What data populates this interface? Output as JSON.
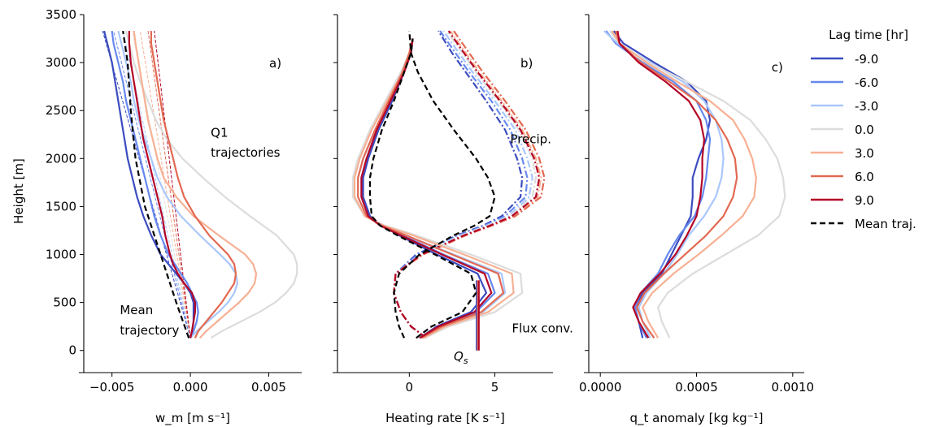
{
  "chart_data": [
    {
      "panel": "a)",
      "type": "line",
      "xlabel": "w_m [m s⁻¹]",
      "ylabel": "Height [m]",
      "xlim": [
        -0.0068,
        0.0071
      ],
      "ylim": [
        -180,
        3500
      ],
      "xticks": [
        {
          "v": -0.005,
          "t": "−0.005"
        },
        {
          "v": 0.0,
          "t": "0.000"
        },
        {
          "v": 0.005,
          "t": "0.005"
        }
      ],
      "yticks": [
        0,
        500,
        1000,
        1500,
        2000,
        2500,
        3000,
        3500
      ],
      "annotations": [
        {
          "text": "Q1",
          "x": 0.0013,
          "y": 2270
        },
        {
          "text": "trajectories",
          "x": 0.0013,
          "y": 2060
        },
        {
          "text": "Mean",
          "x": -0.0045,
          "y": 420
        },
        {
          "text": "trajectory",
          "x": -0.0045,
          "y": 210
        }
      ],
      "heights": [
        130,
        200,
        300,
        400,
        500,
        600,
        700,
        800,
        900,
        1000,
        1200,
        1400,
        1600,
        1800,
        2000,
        2200,
        2400,
        2600,
        2800,
        3000,
        3200,
        3330
      ],
      "series": [
        {
          "name": "-9.0",
          "values": [
            0.0,
            0.0001,
            0.0002,
            0.0002,
            0.0002,
            0.0,
            -0.0004,
            -0.0009,
            -0.0014,
            -0.0019,
            -0.0025,
            -0.003,
            -0.0034,
            -0.0037,
            -0.004,
            -0.0042,
            -0.0044,
            -0.0046,
            -0.0048,
            -0.005,
            -0.0053,
            -0.0055
          ]
        },
        {
          "name": "-6.0",
          "values": [
            0.0,
            0.0002,
            0.0004,
            0.0005,
            0.0004,
            0.0001,
            -0.0002,
            -0.0006,
            -0.001,
            -0.0014,
            -0.0019,
            -0.0023,
            -0.0026,
            -0.0029,
            -0.0032,
            -0.0035,
            -0.0038,
            -0.0041,
            -0.0043,
            -0.0046,
            -0.0049,
            -0.005
          ]
        },
        {
          "name": "-3.0",
          "values": [
            0.0,
            0.0004,
            0.0011,
            0.0018,
            0.0024,
            0.0028,
            0.003,
            0.0029,
            0.0025,
            0.0019,
            0.0006,
            -0.0006,
            -0.0015,
            -0.0021,
            -0.0025,
            -0.0029,
            -0.0033,
            -0.0036,
            -0.0038,
            -0.0041,
            -0.0044,
            -0.0046
          ]
        },
        {
          "name": "0.0",
          "values": [
            0.0013,
            0.002,
            0.0032,
            0.0044,
            0.0054,
            0.0061,
            0.0066,
            0.0068,
            0.0068,
            0.0066,
            0.0055,
            0.0038,
            0.0022,
            0.0008,
            -0.0005,
            -0.0015,
            -0.0022,
            -0.0027,
            -0.0032,
            -0.0036,
            -0.0039,
            -0.0041
          ]
        },
        {
          "name": "3.0",
          "values": [
            0.0006,
            0.001,
            0.0017,
            0.0024,
            0.0031,
            0.0037,
            0.0041,
            0.0042,
            0.004,
            0.0035,
            0.0018,
            0.0002,
            -0.0009,
            -0.0017,
            -0.0021,
            -0.0024,
            -0.0027,
            -0.0029,
            -0.0031,
            -0.0033,
            -0.0035,
            -0.0036
          ]
        },
        {
          "name": "6.0",
          "values": [
            0.0003,
            0.0005,
            0.001,
            0.0015,
            0.002,
            0.0024,
            0.0028,
            0.0029,
            0.0028,
            0.0024,
            0.0012,
            0.0003,
            -0.0004,
            -0.0008,
            -0.0011,
            -0.0014,
            -0.0017,
            -0.0019,
            -0.0021,
            -0.0023,
            -0.0025,
            -0.0025
          ]
        },
        {
          "name": "9.0",
          "values": [
            0.0,
            0.0001,
            0.0002,
            0.0003,
            0.0003,
            0.0001,
            -0.0004,
            -0.0008,
            -0.0011,
            -0.0013,
            -0.0016,
            -0.0018,
            -0.0021,
            -0.0024,
            -0.0027,
            -0.003,
            -0.0032,
            -0.0034,
            -0.0036,
            -0.0038,
            -0.0039,
            -0.0039
          ]
        }
      ],
      "mean_heights": [
        130,
        500,
        1000,
        1500,
        2000,
        2500,
        3000,
        3330
      ],
      "mean_traj": [
        -0.0001,
        -0.0009,
        -0.0019,
        -0.0029,
        -0.0035,
        -0.0038,
        -0.004,
        -0.0043
      ],
      "thin_dashed": [
        {
          "color": "#3b4cc0",
          "x_top": -0.0056
        },
        {
          "color": "#6788ee",
          "x_top": -0.0049
        },
        {
          "color": "#aac7fd",
          "x_top": -0.0043
        },
        {
          "color": "#dddcdc",
          "x_top": -0.0037
        },
        {
          "color": "#f7b093",
          "x_top": -0.0032
        },
        {
          "color": "#e26952",
          "x_top": -0.0027
        },
        {
          "color": "#b40426",
          "x_top": -0.0023
        }
      ]
    },
    {
      "panel": "b)",
      "type": "line",
      "xlabel": "Heating rate [K s⁻¹]",
      "xlim": [
        -4.2,
        8.4
      ],
      "ylim": [
        -180,
        3500
      ],
      "xticks": [
        {
          "v": 0,
          "t": "0"
        },
        {
          "v": 5,
          "t": "5"
        }
      ],
      "annotations": [
        {
          "text": "Precip.",
          "x": 5.9,
          "y": 2200
        },
        {
          "text": "Flux conv.",
          "x": 6.0,
          "y": 230
        },
        {
          "text": "Q",
          "sub": "s",
          "x": 2.6,
          "y": -60
        }
      ],
      "q_s": {
        "x": 4.0,
        "y_min": 0,
        "y_max": 730
      },
      "heights_solid": [
        130,
        250,
        400,
        600,
        800,
        1000,
        1200,
        1300,
        1400,
        1600,
        1800,
        2000,
        2300,
        2600,
        2900,
        3100,
        3250
      ],
      "series_solid": [
        {
          "name": "-9.0",
          "values": [
            0.6,
            1.6,
            3.6,
            4.5,
            4.0,
            1.6,
            -0.6,
            -1.6,
            -2.3,
            -2.7,
            -2.7,
            -2.4,
            -1.8,
            -1.0,
            -0.3,
            0.1,
            0.2
          ]
        },
        {
          "name": "-6.0",
          "values": [
            0.7,
            1.8,
            3.9,
            5.0,
            4.6,
            2.0,
            -0.4,
            -1.6,
            -2.4,
            -2.8,
            -2.8,
            -2.5,
            -1.9,
            -1.1,
            -0.3,
            0.1,
            0.2
          ]
        },
        {
          "name": "-3.0",
          "values": [
            0.8,
            2.0,
            4.3,
            5.6,
            5.4,
            2.6,
            -0.2,
            -1.6,
            -2.5,
            -3.0,
            -3.0,
            -2.7,
            -2.0,
            -1.2,
            -0.4,
            0.0,
            0.2
          ]
        },
        {
          "name": "0.0",
          "values": [
            0.9,
            2.3,
            5.0,
            6.6,
            6.5,
            3.6,
            0.4,
            -1.4,
            -2.6,
            -3.3,
            -3.3,
            -3.0,
            -2.3,
            -1.4,
            -0.5,
            0.0,
            0.2
          ]
        },
        {
          "name": "3.0",
          "values": [
            0.8,
            2.1,
            4.6,
            6.1,
            6.0,
            3.2,
            0.2,
            -1.5,
            -2.6,
            -3.2,
            -3.2,
            -2.9,
            -2.2,
            -1.3,
            -0.4,
            0.0,
            0.2
          ]
        },
        {
          "name": "6.0",
          "values": [
            0.7,
            1.9,
            4.2,
            5.5,
            5.2,
            2.5,
            -0.2,
            -1.6,
            -2.5,
            -3.0,
            -3.0,
            -2.7,
            -2.0,
            -1.2,
            -0.4,
            0.0,
            0.2
          ]
        },
        {
          "name": "9.0",
          "values": [
            0.6,
            1.7,
            3.8,
            4.8,
            4.4,
            1.9,
            -0.5,
            -1.7,
            -2.4,
            -2.8,
            -2.8,
            -2.5,
            -1.9,
            -1.1,
            -0.3,
            0.1,
            0.2
          ]
        }
      ],
      "mean_solid": [
        0.4,
        1.3,
        3.1,
        3.9,
        3.6,
        1.5,
        -0.7,
        -1.7,
        -2.2,
        -2.3,
        -2.3,
        -2.1,
        -1.6,
        -0.9,
        -0.3,
        0.1,
        0.2
      ],
      "heights_dashdot": [
        130,
        250,
        400,
        600,
        800,
        1000,
        1200,
        1300,
        1400,
        1600,
        1800,
        2000,
        2300,
        2600,
        2900,
        3100,
        3330
      ],
      "series_dashdot": [
        {
          "name": "-9.0",
          "values": [
            1.0,
            0.1,
            -0.5,
            -0.9,
            -0.8,
            0.4,
            2.8,
            4.3,
            5.4,
            6.5,
            6.6,
            6.3,
            5.6,
            4.5,
            3.3,
            2.5,
            1.7
          ]
        },
        {
          "name": "-6.0",
          "values": [
            1.0,
            0.1,
            -0.5,
            -0.9,
            -0.8,
            0.5,
            2.9,
            4.4,
            5.6,
            6.8,
            6.9,
            6.6,
            5.9,
            4.8,
            3.5,
            2.7,
            1.8
          ]
        },
        {
          "name": "-3.0",
          "values": [
            1.0,
            0.1,
            -0.5,
            -0.9,
            -0.8,
            0.6,
            3.0,
            4.5,
            5.8,
            7.0,
            7.2,
            6.9,
            6.2,
            5.0,
            3.7,
            2.9,
            2.0
          ]
        },
        {
          "name": "0.0",
          "values": [
            1.0,
            0.1,
            -0.5,
            -0.9,
            -0.8,
            0.7,
            3.1,
            4.6,
            5.9,
            7.2,
            7.4,
            7.2,
            6.4,
            5.2,
            3.9,
            3.1,
            2.2
          ]
        },
        {
          "name": "3.0",
          "values": [
            1.0,
            0.1,
            -0.5,
            -0.9,
            -0.8,
            0.8,
            3.2,
            4.7,
            6.1,
            7.5,
            7.7,
            7.4,
            6.6,
            5.4,
            4.1,
            3.3,
            2.4
          ]
        },
        {
          "name": "6.0",
          "values": [
            1.0,
            0.1,
            -0.5,
            -0.9,
            -0.8,
            0.8,
            3.3,
            4.8,
            6.2,
            7.7,
            7.9,
            7.6,
            6.8,
            5.6,
            4.3,
            3.5,
            2.6
          ]
        },
        {
          "name": "9.0",
          "values": [
            1.0,
            0.1,
            -0.5,
            -0.9,
            -0.8,
            0.7,
            3.2,
            4.7,
            6.0,
            7.4,
            7.6,
            7.3,
            6.5,
            5.3,
            4.0,
            3.2,
            2.3
          ]
        }
      ],
      "mean_dashdot": [
        -0.3,
        -0.6,
        -0.8,
        -0.9,
        -0.6,
        0.6,
        2.6,
        3.8,
        4.7,
        5.0,
        4.6,
        3.9,
        2.6,
        1.4,
        0.5,
        0.1,
        0.0
      ]
    },
    {
      "panel": "c)",
      "type": "line",
      "xlabel": "q_t anomaly [kg kg⁻¹]",
      "xlim": [
        -6e-05,
        0.00106
      ],
      "ylim": [
        -180,
        3500
      ],
      "xticks": [
        {
          "v": 0.0,
          "t": "0.0000"
        },
        {
          "v": 0.0005,
          "t": "0.0005"
        },
        {
          "v": 0.001,
          "t": "0.0010"
        }
      ],
      "annotations": [
        {
          "text": "c)",
          "x": 0.00089,
          "y": 2950
        }
      ],
      "heights": [
        130,
        300,
        450,
        600,
        800,
        1000,
        1200,
        1400,
        1600,
        1800,
        2000,
        2200,
        2400,
        2600,
        2800,
        3000,
        3200,
        3330
      ],
      "series": [
        {
          "name": "-9.0",
          "values": [
            0.00022,
            0.0002,
            0.00018,
            0.00022,
            0.00032,
            0.00037,
            0.00042,
            0.00047,
            0.00048,
            0.00048,
            0.00051,
            0.00055,
            0.00057,
            0.00055,
            0.00045,
            0.00028,
            0.00012,
            7e-05
          ]
        },
        {
          "name": "-6.0",
          "values": [
            0.00024,
            0.0002,
            0.00018,
            0.00021,
            0.0003,
            0.00035,
            0.00041,
            0.00049,
            0.00053,
            0.00055,
            0.00056,
            0.00057,
            0.00055,
            0.0005,
            0.00038,
            0.00022,
            8e-05,
            3e-05
          ]
        },
        {
          "name": "-3.0",
          "values": [
            0.00026,
            0.00022,
            0.0002,
            0.00024,
            0.00033,
            0.0004,
            0.00046,
            0.00054,
            0.0006,
            0.00063,
            0.00064,
            0.00063,
            0.0006,
            0.00054,
            0.00043,
            0.00026,
            9e-05,
            2e-05
          ]
        },
        {
          "name": "0.0",
          "values": [
            0.00036,
            0.00032,
            0.0003,
            0.00035,
            0.00048,
            0.00065,
            0.00082,
            0.00093,
            0.00096,
            0.00095,
            0.00092,
            0.00086,
            0.00078,
            0.00064,
            0.00045,
            0.00025,
            0.0001,
            5e-05
          ]
        },
        {
          "name": "3.0",
          "values": [
            0.0003,
            0.00025,
            0.00022,
            0.00027,
            0.00038,
            0.00051,
            0.00063,
            0.00074,
            0.0008,
            0.00081,
            0.00079,
            0.00075,
            0.00069,
            0.00057,
            0.0004,
            0.00024,
            0.0001,
            6e-05
          ]
        },
        {
          "name": "6.0",
          "values": [
            0.00028,
            0.00022,
            0.00019,
            0.00023,
            0.00033,
            0.00044,
            0.00055,
            0.00064,
            0.00069,
            0.00071,
            0.0007,
            0.00066,
            0.0006,
            0.0005,
            0.00036,
            0.00021,
            0.0001,
            8e-05
          ]
        },
        {
          "name": "9.0",
          "values": [
            0.00025,
            0.0002,
            0.00017,
            0.00021,
            0.00031,
            0.00039,
            0.00045,
            0.0005,
            0.00052,
            0.00053,
            0.00053,
            0.00054,
            0.00052,
            0.00046,
            0.00034,
            0.0002,
            0.0001,
            9e-05
          ]
        }
      ]
    }
  ],
  "legend": {
    "title": "Lag time [hr]",
    "placement": "right",
    "entries": [
      {
        "label": "-9.0",
        "color": "#3b4cc0",
        "style": "solid"
      },
      {
        "label": "-6.0",
        "color": "#6788ee",
        "style": "solid"
      },
      {
        "label": "-3.0",
        "color": "#aac7fd",
        "style": "solid"
      },
      {
        "label": "0.0",
        "color": "#dddcdc",
        "style": "solid"
      },
      {
        "label": "3.0",
        "color": "#f7b093",
        "style": "solid"
      },
      {
        "label": "6.0",
        "color": "#e26952",
        "style": "solid"
      },
      {
        "label": "9.0",
        "color": "#b40426",
        "style": "solid"
      },
      {
        "label": "Mean traj.",
        "color": "#000000",
        "style": "dashed"
      }
    ]
  },
  "colors": {
    "-9.0": "#3b4cc0",
    "-6.0": "#6788ee",
    "-3.0": "#aac7fd",
    "0.0": "#dddcdc",
    "3.0": "#f7b093",
    "6.0": "#e26952",
    "9.0": "#b40426",
    "mean": "#000000"
  }
}
